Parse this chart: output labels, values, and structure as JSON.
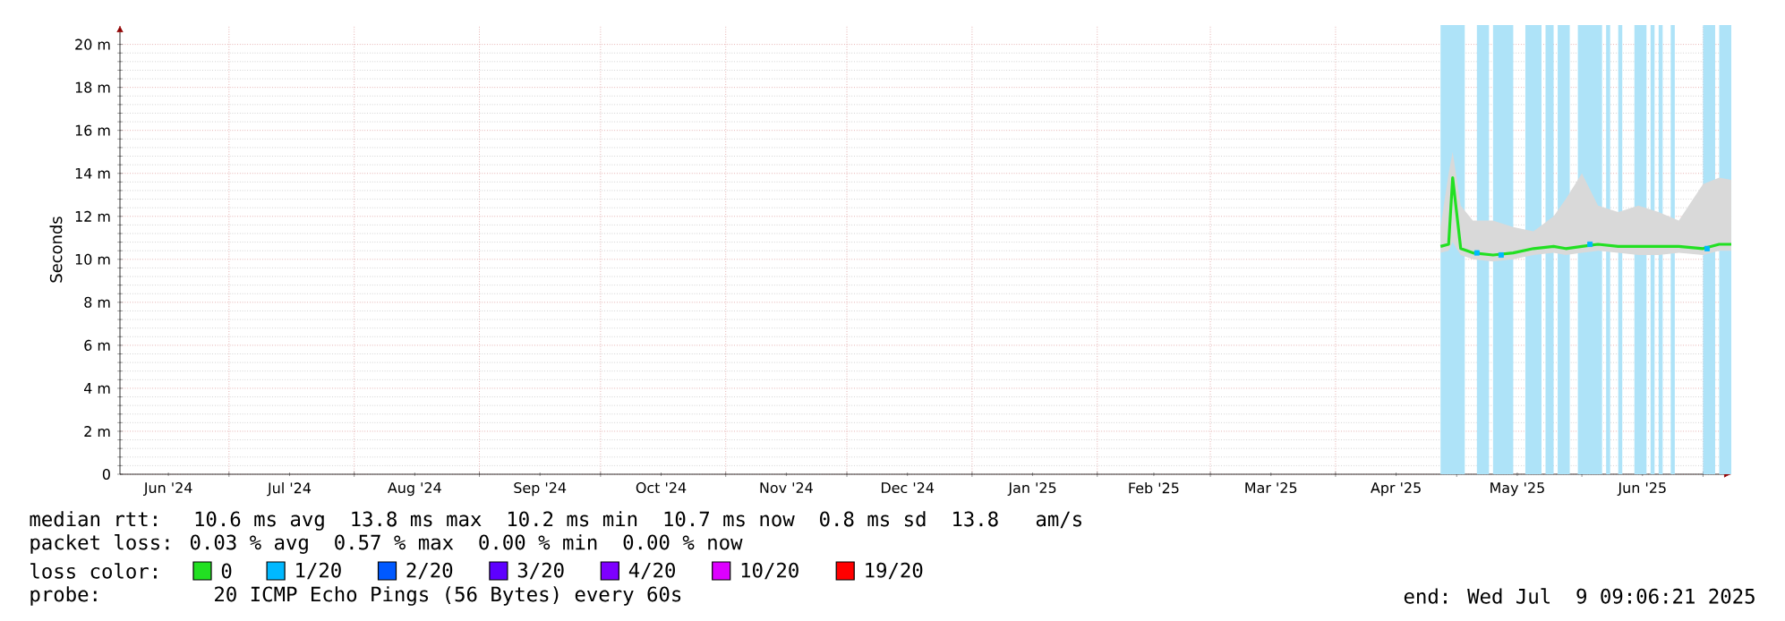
{
  "chart_data": {
    "type": "line",
    "ylabel": "Seconds",
    "legend_title": "loss color:",
    "legend": "bottom",
    "grid": true,
    "line_style": "solid",
    "annotations": [
      "median rtt:  10.6 ms avg  13.8 ms max  10.2 ms min  10.7 ms now  0.8 ms sd  13.8   am/s",
      "packet loss: 0.03 % avg  0.57 % max  0.00 % min  0.00 % now",
      "probe:       20 ICMP Echo Pings (56 Bytes) every 60s",
      "end: Wed Jul  9 09:06:21 2025"
    ],
    "xlim": [
      "2024-06-04",
      "2025-07-08"
    ],
    "xticks": [
      {
        "value": "2024-06-16",
        "label": "Jun '24"
      },
      {
        "value": "2024-07-01",
        "label": null
      },
      {
        "value": "2024-07-16",
        "label": "Jul '24"
      },
      {
        "value": "2024-08-01",
        "label": null
      },
      {
        "value": "2024-08-16",
        "label": "Aug '24"
      },
      {
        "value": "2024-09-01",
        "label": null
      },
      {
        "value": "2024-09-16",
        "label": "Sep '24"
      },
      {
        "value": "2024-10-01",
        "label": null
      },
      {
        "value": "2024-10-16",
        "label": "Oct '24"
      },
      {
        "value": "2024-11-01",
        "label": null
      },
      {
        "value": "2024-11-16",
        "label": "Nov '24"
      },
      {
        "value": "2024-12-01",
        "label": null
      },
      {
        "value": "2024-12-16",
        "label": "Dec '24"
      },
      {
        "value": "2025-01-01",
        "label": null
      },
      {
        "value": "2025-01-16",
        "label": "Jan '25"
      },
      {
        "value": "2025-02-01",
        "label": null
      },
      {
        "value": "2025-02-15",
        "label": "Feb '25"
      },
      {
        "value": "2025-03-01",
        "label": null
      },
      {
        "value": "2025-03-16",
        "label": "Mar '25"
      },
      {
        "value": "2025-04-01",
        "label": null
      },
      {
        "value": "2025-04-16",
        "label": "Apr '25"
      },
      {
        "value": "2025-05-01",
        "label": null
      },
      {
        "value": "2025-05-16",
        "label": "May '25"
      },
      {
        "value": "2025-06-01",
        "label": null
      },
      {
        "value": "2025-06-16",
        "label": "Jun '25"
      },
      {
        "value": "2025-07-01",
        "label": null
      }
    ],
    "ylim": [
      0,
      20.9
    ],
    "yticks": [
      0,
      {
        "value": 2,
        "label": "2 m"
      },
      {
        "value": 4,
        "label": "4 m"
      },
      {
        "value": 6,
        "label": "6 m"
      },
      {
        "value": 8,
        "label": "8 m"
      },
      {
        "value": 10,
        "label": "10 m"
      },
      {
        "value": 12,
        "label": "12 m"
      },
      {
        "value": 14,
        "label": "14 m"
      },
      {
        "value": 16,
        "label": "16 m"
      },
      {
        "value": 18,
        "label": "18 m"
      },
      {
        "value": 20,
        "label": "20 m"
      }
    ],
    "bands": [
      {
        "axis": "x",
        "from": "2025-04-27",
        "to": "2025-05-03",
        "color": "#aee3f8"
      },
      {
        "axis": "x",
        "from": "2025-05-06",
        "to": "2025-05-09",
        "color": "#aee3f8"
      },
      {
        "axis": "x",
        "from": "2025-05-10",
        "to": "2025-05-15",
        "color": "#aee3f8"
      },
      {
        "axis": "x",
        "from": "2025-05-18",
        "to": "2025-05-22",
        "color": "#aee3f8"
      },
      {
        "axis": "x",
        "from": "2025-05-23",
        "to": "2025-05-25",
        "color": "#aee3f8"
      },
      {
        "axis": "x",
        "from": "2025-05-26",
        "to": "2025-05-29",
        "color": "#aee3f8"
      },
      {
        "axis": "x",
        "from": "2025-05-31",
        "to": "2025-06-06",
        "color": "#aee3f8"
      },
      {
        "axis": "x",
        "from": "2025-06-07",
        "to": "2025-06-08",
        "color": "#aee3f8"
      },
      {
        "axis": "x",
        "from": "2025-06-10",
        "to": "2025-06-11",
        "color": "#aee3f8"
      },
      {
        "axis": "x",
        "from": "2025-06-14",
        "to": "2025-06-17",
        "color": "#aee3f8"
      },
      {
        "axis": "x",
        "from": "2025-06-18",
        "to": "2025-06-19",
        "color": "#aee3f8"
      },
      {
        "axis": "x",
        "from": "2025-06-20",
        "to": "2025-06-21",
        "color": "#aee3f8"
      },
      {
        "axis": "x",
        "from": "2025-06-23",
        "to": "2025-06-24",
        "color": "#aee3f8"
      },
      {
        "axis": "x",
        "from": "2025-07-01",
        "to": "2025-07-04",
        "color": "#aee3f8"
      },
      {
        "axis": "x",
        "from": "2025-07-05",
        "to": "2025-07-08",
        "color": "#aee3f8"
      }
    ],
    "series": [
      {
        "name": "0",
        "color": "#22e022",
        "x": [
          "2025-04-27",
          "2025-04-29",
          "2025-04-30",
          "2025-05-02",
          "2025-05-05",
          "2025-05-10",
          "2025-05-15",
          "2025-05-20",
          "2025-05-25",
          "2025-05-28",
          "2025-06-01",
          "2025-06-05",
          "2025-06-10",
          "2025-06-15",
          "2025-06-20",
          "2025-06-25",
          "2025-07-01",
          "2025-07-05",
          "2025-07-08"
        ],
        "values": [
          10.6,
          10.7,
          13.8,
          10.5,
          10.3,
          10.2,
          10.3,
          10.5,
          10.6,
          10.5,
          10.6,
          10.7,
          10.6,
          10.6,
          10.6,
          10.6,
          10.5,
          10.7,
          10.7
        ],
        "lower": [
          10.3,
          10.4,
          10.8,
          10.2,
          10.0,
          9.9,
          10.0,
          10.2,
          10.3,
          10.2,
          10.3,
          10.4,
          10.3,
          10.2,
          10.2,
          10.3,
          10.2,
          10.4,
          10.4
        ],
        "upper": [
          11.5,
          14.0,
          15.0,
          12.5,
          11.8,
          11.8,
          11.5,
          11.3,
          12.0,
          12.8,
          14.0,
          12.5,
          12.2,
          12.5,
          12.2,
          11.8,
          13.5,
          13.8,
          13.7
        ]
      },
      {
        "name": "1/20",
        "type": "scatter",
        "color": "#00b8ff",
        "x": [
          "2025-05-06",
          "2025-05-12",
          "2025-06-03",
          "2025-07-02"
        ],
        "values": [
          10.3,
          10.2,
          10.7,
          10.5
        ]
      },
      {
        "name": "2/20",
        "type": "scatter",
        "color": "#0059ff"
      },
      {
        "name": "3/20",
        "type": "scatter",
        "color": "#5e00ff"
      },
      {
        "name": "4/20",
        "type": "scatter",
        "color": "#7e00ff"
      },
      {
        "name": "10/20",
        "type": "scatter",
        "color": "#dd00ff"
      },
      {
        "name": "19/20",
        "type": "scatter",
        "color": "#ff0000"
      }
    ]
  }
}
